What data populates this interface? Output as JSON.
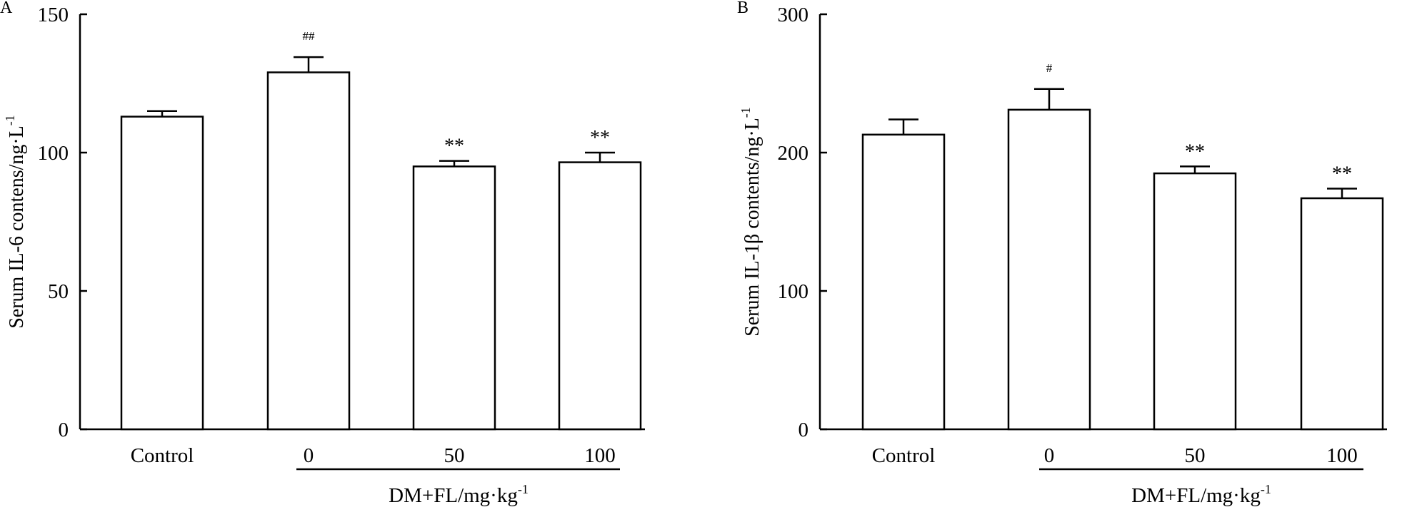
{
  "chart_data": [
    {
      "type": "bar",
      "panel_label": "A",
      "categories": [
        "Control",
        "0",
        "50",
        "100"
      ],
      "values": [
        113,
        129,
        95,
        96.5
      ],
      "errors": [
        2,
        5.5,
        2,
        3.5
      ],
      "significance": [
        "",
        "##",
        "**",
        "**"
      ],
      "ylabel_main": "Serum IL-6 contens/ng·L",
      "ylabel_sup": "-1",
      "ylim": [
        0,
        150
      ],
      "yticks": [
        0,
        50,
        100,
        150
      ],
      "group_label_main": "DM+FL/mg·kg",
      "group_label_sup": "-1",
      "bar_color": "#ffffff",
      "line_color": "#000000"
    },
    {
      "type": "bar",
      "panel_label": "B",
      "categories": [
        "Control",
        "0",
        "50",
        "100"
      ],
      "values": [
        213,
        231,
        185,
        167
      ],
      "errors": [
        11,
        15,
        5,
        7
      ],
      "significance": [
        "",
        "#",
        "**",
        "**"
      ],
      "ylabel_main": "Serum IL-1β contents/ng·L",
      "ylabel_sup": "-1",
      "ylim": [
        0,
        300
      ],
      "yticks": [
        0,
        100,
        200,
        300
      ],
      "group_label_main": "DM+FL/mg·kg",
      "group_label_sup": "-1",
      "bar_color": "#ffffff",
      "line_color": "#000000"
    }
  ]
}
